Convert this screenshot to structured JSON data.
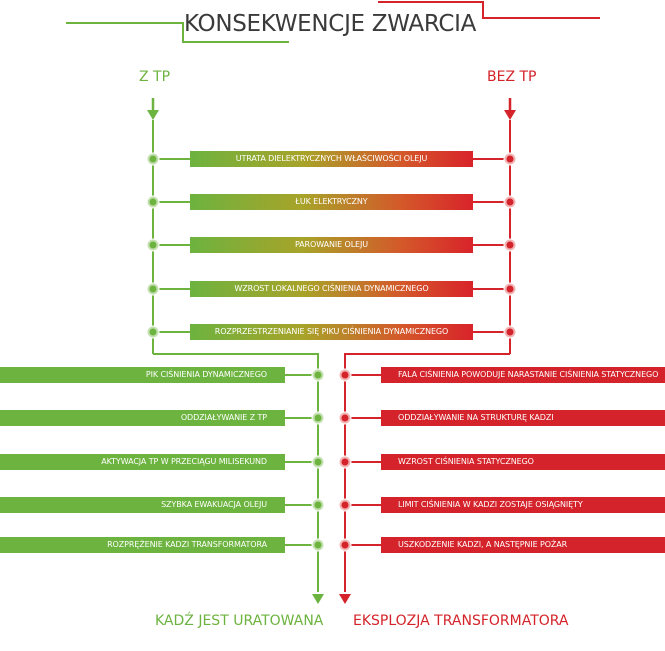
{
  "title": "KONSEKWENCJE ZWARCIA",
  "left_label": "Z TP",
  "right_label": "BEZ TP",
  "shared_steps": [
    "UTRATA DIELEKTRYCZNYCH WŁAŚCIWOŚCI OLEJU",
    "ŁUK ELEKTRYCZNY",
    "PAROWANIE OLEJU",
    "WZROST LOKALNEGO CIŚNIENIA DYNAMICZNEGO",
    "ROZPRZESTRZENIANIE SIĘ PIKU CIŚNIENIA DYNAMICZNEGO"
  ],
  "left_steps": [
    "PIK CIŚNIENIA DYNAMICZNEGO",
    "ODDZIAŁYWANIE Z TP",
    "AKTYWACJA TP W PRZECIĄGU MILISEKUND",
    "SZYBKA EWAKUACJA OLEJU",
    "ROZPRĘŻENIE KADZI TRANSFORMATORA"
  ],
  "right_steps": [
    "FALA CIŚNIENIA POWODUJE NARASTANIE CIŚNIENIA STATYCZNEGO",
    "ODDZIAŁYWANIE NA STRUKTURĘ KADZI",
    "WZROST CIŚNIENIA STATYCZNEGO",
    "LIMIT CIŚNIENIA W KADZI ZOSTAJE OSIĄGNIĘTY",
    "USZKODZENIE KADZI, A NASTĘPNIE POŻAR"
  ],
  "left_outcome": "KADŹ JEST URATOWANA",
  "right_outcome": "EKSPLOZJA TRANSFORMATORA",
  "colors": {
    "green": "#6db33f",
    "red": "#d4232a",
    "title": "#3a3a3a"
  }
}
